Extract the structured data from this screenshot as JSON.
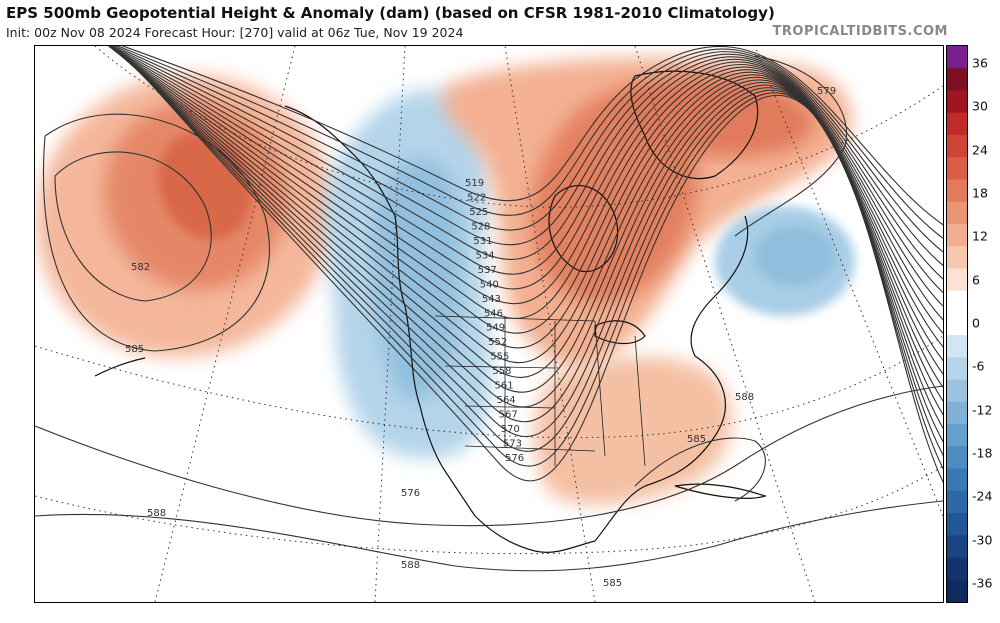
{
  "header": {
    "title": "EPS 500mb Geopotential Height & Anomaly (dam) (based on CFSR 1981-2010 Climatology)",
    "subtitle": "Init: 00z Nov 08 2024   Forecast Hour: [270]   valid at 06z Tue, Nov 19 2024",
    "credit": "TROPICALTIDBITS.COM"
  },
  "colorbar": {
    "labels": [
      "36",
      "30",
      "24",
      "18",
      "12",
      "6",
      "0",
      "-6",
      "-12",
      "-18",
      "-24",
      "-30",
      "-36"
    ],
    "colors_top_to_bottom": [
      "#7a1f8f",
      "#7d1020",
      "#a0151f",
      "#c02a2a",
      "#cf4535",
      "#da5e45",
      "#e27a5c",
      "#e99474",
      "#f0ae8f",
      "#f6c8ae",
      "#fbe2d2",
      "#ffffff",
      "#ffffff",
      "#d3e5f1",
      "#b6d3e8",
      "#9ac2df",
      "#7fb0d5",
      "#659fcb",
      "#4c8cc0",
      "#3a7ab4",
      "#2d67a6",
      "#235696",
      "#1b4483",
      "#143470",
      "#0f2a5e"
    ]
  },
  "map": {
    "region": "North America",
    "contour_labels": [
      "519",
      "522",
      "525",
      "528",
      "531",
      "534",
      "537",
      "540",
      "543",
      "546",
      "549",
      "552",
      "555",
      "558",
      "561",
      "564",
      "567",
      "570",
      "573",
      "576",
      "579",
      "582",
      "585",
      "588",
      "576",
      "588",
      "585",
      "585",
      "588",
      "588",
      "585",
      "588",
      "588"
    ],
    "anomaly_colors": {
      "positive": "#f2a98a",
      "positive_strong": "#e0785a",
      "negative": "#a9cde6",
      "negative_strong": "#86b8da"
    }
  }
}
